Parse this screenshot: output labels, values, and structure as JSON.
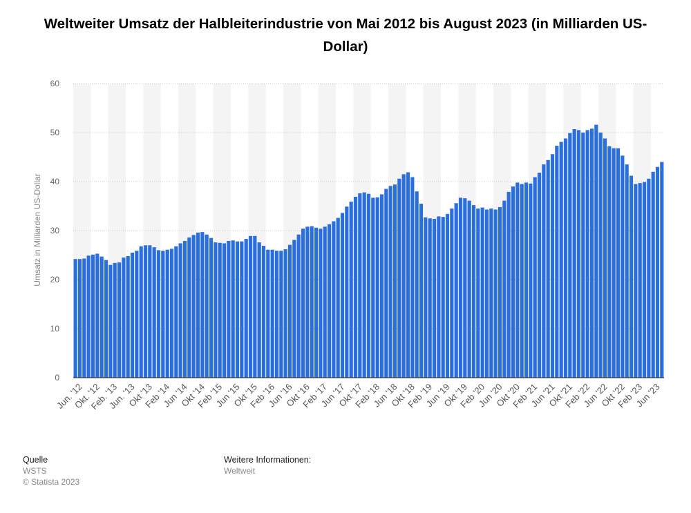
{
  "chart_data": {
    "type": "bar",
    "title": "Weltweiter Umsatz der Halbleiterindustrie von Mai 2012 bis August 2023 (in Milliarden US-Dollar)",
    "ylabel": "Umsatz in Milliarden US-Dollar",
    "xlabel": "",
    "ylim": [
      0,
      60
    ],
    "y_ticks": [
      0,
      10,
      20,
      30,
      40,
      50,
      60
    ],
    "grid": true,
    "bar_color": "#2a6fdb",
    "x_tick_labels": [
      "Jun. '12",
      "Okt. '12",
      "Feb. '13",
      "Jun. '13",
      "Okt '13",
      "Feb '14",
      "Jun '14",
      "Okt '14",
      "Feb '15",
      "Jun '15",
      "Okt '15",
      "Feb '16",
      "Jun '16",
      "Okt '16",
      "Feb '17",
      "Jun '17",
      "Okt '17",
      "Feb '18",
      "Jun '18",
      "Okt '18",
      "Feb '19",
      "Jun '19",
      "Okt '19",
      "Feb '20",
      "Jun '20",
      "Okt '20",
      "Feb '21",
      "Jun '21",
      "Okt '21",
      "Feb '22",
      "Jun '22",
      "Okt '22",
      "Feb '23",
      "Jun '23"
    ],
    "values": [
      24.2,
      24.2,
      24.3,
      24.9,
      25.1,
      25.3,
      24.7,
      24.0,
      23.0,
      23.4,
      23.5,
      24.5,
      24.8,
      25.5,
      25.9,
      26.8,
      27.0,
      27.0,
      26.6,
      26.0,
      25.9,
      26.1,
      26.3,
      26.8,
      27.4,
      27.9,
      28.6,
      29.1,
      29.6,
      29.7,
      29.2,
      28.5,
      27.6,
      27.5,
      27.4,
      27.9,
      28.0,
      27.8,
      27.8,
      28.3,
      28.9,
      28.9,
      27.6,
      26.9,
      26.1,
      26.1,
      25.9,
      25.9,
      26.2,
      27.1,
      28.1,
      29.2,
      30.4,
      30.8,
      30.9,
      30.6,
      30.4,
      30.8,
      31.3,
      31.9,
      32.6,
      33.6,
      34.9,
      35.9,
      36.9,
      37.6,
      37.8,
      37.5,
      36.7,
      36.8,
      37.4,
      38.5,
      39.1,
      39.4,
      40.6,
      41.5,
      41.9,
      40.9,
      38.0,
      35.5,
      32.7,
      32.5,
      32.4,
      32.9,
      32.8,
      33.4,
      34.5,
      35.6,
      36.7,
      36.6,
      36.1,
      35.2,
      34.5,
      34.7,
      34.3,
      34.5,
      34.3,
      34.8,
      36.1,
      37.9,
      39.0,
      39.8,
      39.5,
      39.8,
      39.6,
      40.9,
      41.8,
      43.5,
      44.4,
      45.6,
      47.3,
      48.1,
      48.8,
      49.9,
      50.7,
      50.5,
      50.0,
      50.5,
      50.8,
      51.6,
      50.0,
      48.8,
      47.2,
      46.8,
      46.8,
      45.3,
      43.5,
      41.2,
      39.5,
      39.7,
      39.9,
      40.6,
      42.0,
      43.0,
      44.0
    ]
  },
  "footer": {
    "source_heading": "Quelle",
    "source_value": "WSTS",
    "copyright": "© Statista 2023",
    "info_heading": "Weitere Informationen:",
    "info_value": "Weltweit"
  }
}
